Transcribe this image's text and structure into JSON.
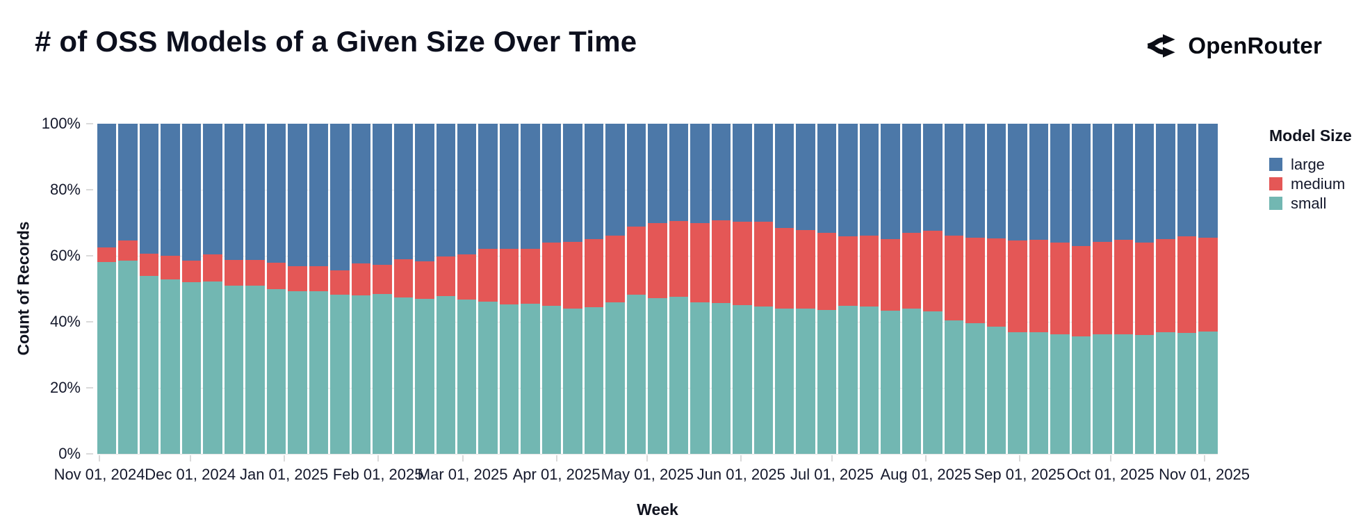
{
  "header": {
    "title": "# of OSS Models of a Given Size Over Time",
    "brand_name": "OpenRouter"
  },
  "chart_data": {
    "type": "bar",
    "stacked": "normalized",
    "title": "# of OSS Models of a Given Size Over Time",
    "xlabel": "Week",
    "ylabel": "Count of Records",
    "grid": true,
    "weeks": 53,
    "y_ticks": [
      {
        "label": "0%",
        "value": 0
      },
      {
        "label": "20%",
        "value": 20
      },
      {
        "label": "40%",
        "value": 40
      },
      {
        "label": "60%",
        "value": 60
      },
      {
        "label": "80%",
        "value": 80
      },
      {
        "label": "100%",
        "value": 100
      }
    ],
    "x_ticks": [
      {
        "label": "Nov 01, 2024",
        "day": 0
      },
      {
        "label": "Dec 01, 2024",
        "day": 30
      },
      {
        "label": "Jan 01, 2025",
        "day": 61
      },
      {
        "label": "Feb 01, 2025",
        "day": 92
      },
      {
        "label": "Mar 01, 2025",
        "day": 120
      },
      {
        "label": "Apr 01, 2025",
        "day": 151
      },
      {
        "label": "May 01, 2025",
        "day": 181
      },
      {
        "label": "Jun 01, 2025",
        "day": 212
      },
      {
        "label": "Jul 01, 2025",
        "day": 242
      },
      {
        "label": "Aug 01, 2025",
        "day": 273
      },
      {
        "label": "Sep 01, 2025",
        "day": 304
      },
      {
        "label": "Oct 01, 2025",
        "day": 334
      },
      {
        "label": "Nov 01, 2025",
        "day": 365
      }
    ],
    "stack_order_bottom_to_top": [
      "small",
      "medium",
      "large"
    ],
    "series": [
      {
        "name": "small",
        "color": "#72b7b2",
        "values": [
          58.2,
          58.5,
          53.9,
          52.8,
          52.0,
          52.2,
          50.9,
          50.9,
          50.0,
          49.3,
          49.3,
          48.2,
          48.0,
          48.4,
          47.4,
          46.9,
          47.7,
          46.7,
          46.2,
          45.3,
          45.4,
          44.9,
          44.0,
          44.4,
          46.0,
          48.2,
          47.2,
          47.5,
          46.0,
          45.6,
          45.1,
          44.7,
          43.9,
          44.1,
          43.5,
          44.8,
          44.6,
          43.4,
          44.0,
          43.2,
          40.4,
          39.5,
          38.5,
          36.9,
          36.9,
          36.3,
          35.6,
          36.3,
          36.3,
          35.9,
          36.9,
          36.6,
          37.0
        ]
      },
      {
        "name": "medium",
        "color": "#e45756",
        "values": [
          4.4,
          6.1,
          6.7,
          7.3,
          6.6,
          8.2,
          7.8,
          7.8,
          7.8,
          7.5,
          7.5,
          7.3,
          9.6,
          8.8,
          11.5,
          11.5,
          12.0,
          13.8,
          16.0,
          16.9,
          16.7,
          19.2,
          20.3,
          20.6,
          20.2,
          20.6,
          22.8,
          23.1,
          23.9,
          25.2,
          25.3,
          25.6,
          24.6,
          23.7,
          23.4,
          21.2,
          21.6,
          21.6,
          22.9,
          24.4,
          25.8,
          26.0,
          26.7,
          27.7,
          27.9,
          27.6,
          27.4,
          28.0,
          28.5,
          28.2,
          28.1,
          29.2,
          28.4
        ]
      },
      {
        "name": "large",
        "color": "#4c78a8",
        "values": [
          37.4,
          35.4,
          39.4,
          39.9,
          41.4,
          39.6,
          41.3,
          41.3,
          42.2,
          43.2,
          43.2,
          44.5,
          42.4,
          42.8,
          41.1,
          41.6,
          40.3,
          39.5,
          37.8,
          37.8,
          37.9,
          35.9,
          35.7,
          35.0,
          33.8,
          31.2,
          30.0,
          29.4,
          30.1,
          29.2,
          29.6,
          29.7,
          31.5,
          32.2,
          33.1,
          34.0,
          33.8,
          35.0,
          33.1,
          32.4,
          33.8,
          34.5,
          34.8,
          35.4,
          35.2,
          36.1,
          37.0,
          35.7,
          35.2,
          35.9,
          35.0,
          34.2,
          34.6
        ]
      }
    ],
    "legend": {
      "title": "Model Size",
      "position": "right",
      "entries": [
        {
          "label": "large",
          "color": "#4c78a8"
        },
        {
          "label": "medium",
          "color": "#e45756"
        },
        {
          "label": "small",
          "color": "#72b7b2"
        }
      ]
    }
  }
}
